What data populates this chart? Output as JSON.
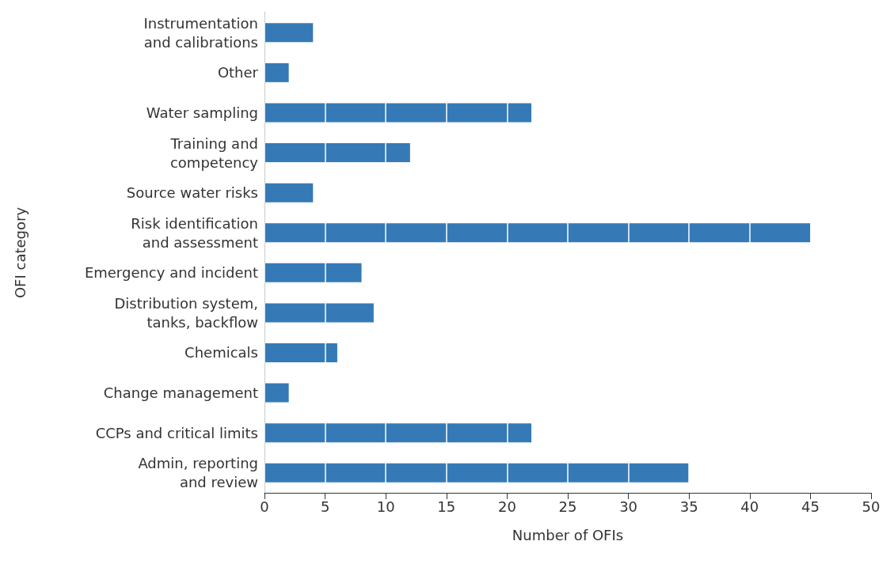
{
  "chart_data": {
    "type": "bar",
    "orientation": "horizontal",
    "xlabel": "Number of OFIs",
    "ylabel": "OFI category",
    "categories": [
      "Instrumentation\nand calibrations",
      "Other",
      "Water sampling",
      "Training and\ncompetency",
      "Source water risks",
      "Risk identification\nand assessment",
      "Emergency and incident",
      "Distribution system,\ntanks, backflow",
      "Chemicals",
      "Change management",
      "CCPs and critical limits",
      "Admin, reporting\nand review"
    ],
    "values": [
      4,
      2,
      22,
      12,
      4,
      45,
      8,
      9,
      6,
      2,
      22,
      35
    ],
    "color": "#357ab7",
    "xlim": [
      0,
      50
    ],
    "xticks": [
      0,
      5,
      10,
      15,
      20,
      25,
      30,
      35,
      40,
      45,
      50
    ],
    "grid": "x"
  }
}
